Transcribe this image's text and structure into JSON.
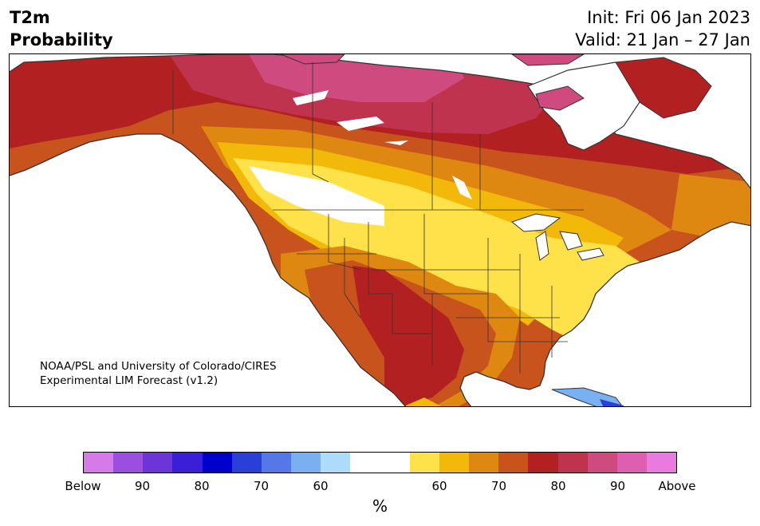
{
  "header": {
    "title_line1": "T2m",
    "title_line2": "Probability",
    "init": "Init: Fri 06 Jan 2023",
    "valid": "Valid: 21 Jan – 27 Jan"
  },
  "credit": {
    "line1": "NOAA/PSL and University of Colorado/CIRES",
    "line2": "Experimental LIM Forecast (v1.2)"
  },
  "map": {
    "region": "North America",
    "colors": {
      "land_outline": "#333333",
      "water": "#ffffff"
    }
  },
  "colorbar": {
    "colors": [
      "#d67ae8",
      "#9b4ee0",
      "#6d35d8",
      "#3a1fd6",
      "#0000cc",
      "#2a3ed8",
      "#5577e8",
      "#78b0f2",
      "#addcfa",
      "#ffffff",
      "#ffffff",
      "#ffe14a",
      "#f2b80a",
      "#df8811",
      "#c8531c",
      "#b32022",
      "#c0334f",
      "#cf4a7f",
      "#de5fb1",
      "#e97be0"
    ],
    "tick_labels": [
      "Below",
      "90",
      "80",
      "70",
      "60",
      "60",
      "70",
      "80",
      "90",
      "Above"
    ],
    "unit": "%"
  }
}
